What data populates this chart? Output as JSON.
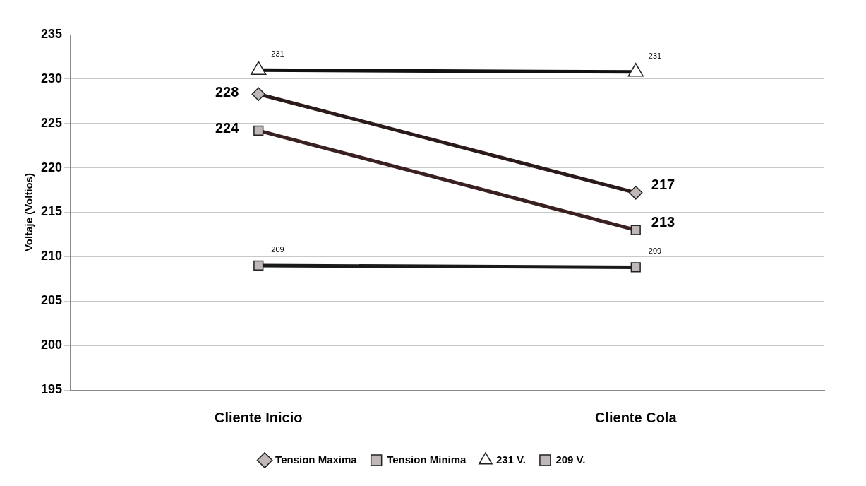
{
  "chart_data": {
    "type": "line",
    "ylabel": "Voltaje (Voltios)",
    "categories": [
      "Cliente Inicio",
      "Cliente Cola"
    ],
    "ylim": [
      195,
      235
    ],
    "yticks": [
      195,
      200,
      205,
      210,
      215,
      220,
      225,
      230,
      235
    ],
    "grid": "y",
    "legend": "bottom",
    "line_style": "solid",
    "series": [
      {
        "name": "Tension Maxima",
        "color": "#2a1a1a",
        "marker": "diamond",
        "values": [
          228.3,
          217.2
        ],
        "value_labels": [
          "228",
          "217"
        ]
      },
      {
        "name": "Tension Minima",
        "color": "#3a2020",
        "marker": "square",
        "values": [
          224.2,
          213
        ],
        "value_labels": [
          "224",
          "213"
        ]
      },
      {
        "name": "231 V.",
        "color": "#111111",
        "marker": "triangle",
        "values": [
          231,
          230.8
        ],
        "value_labels": [
          "231",
          "231"
        ]
      },
      {
        "name": "209 V.",
        "color": "#1a1a1a",
        "marker": "square",
        "values": [
          209,
          208.8
        ],
        "value_labels": [
          "209",
          "209"
        ]
      }
    ]
  }
}
